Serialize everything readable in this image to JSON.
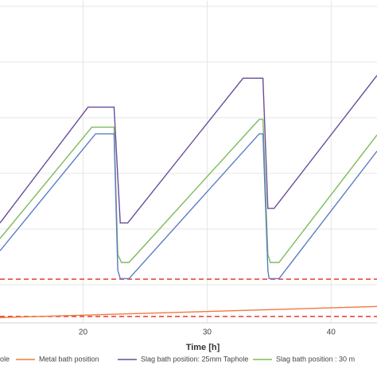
{
  "chart_data": {
    "type": "line",
    "xlabel": "Time [h]",
    "xlim": [
      13.3,
      43.7
    ],
    "xticks": [
      20,
      30,
      40
    ],
    "ylim": [
      -1,
      57
    ],
    "ygrid": [
      6,
      16,
      26,
      36,
      46,
      56
    ],
    "grid": true,
    "reference": {
      "name": "hole",
      "color": "#e8392f",
      "values": [
        7.0,
        0.3
      ]
    },
    "series": [
      {
        "name": "Metal bath position",
        "color": "#f07a3a",
        "x": [
          13.3,
          43.7
        ],
        "values": [
          0.1,
          2.1
        ]
      },
      {
        "name": "Slag bath position: 25mm Taphole",
        "color": "#6a4c9c",
        "x": [
          13.3,
          20.4,
          22.5,
          23.0,
          23.6,
          32.9,
          34.5,
          34.9,
          35.4,
          43.7
        ],
        "values": [
          17.1,
          37.9,
          37.9,
          17.1,
          17.1,
          43.1,
          43.1,
          19.7,
          19.7,
          43.6
        ]
      },
      {
        "name": "Slag bath position : 30 m",
        "color": "#7dbb5a",
        "x": [
          13.3,
          20.7,
          22.5,
          22.8,
          23.1,
          23.7,
          34.2,
          34.5,
          34.9,
          35.1,
          35.8,
          43.7
        ],
        "values": [
          14.3,
          34.3,
          34.3,
          11.4,
          10.0,
          10.0,
          35.7,
          35.7,
          11.4,
          10.0,
          10.0,
          32.9
        ]
      },
      {
        "color": "#5b7cc4",
        "x": [
          13.3,
          21.0,
          22.5,
          22.8,
          23.0,
          23.7,
          34.2,
          34.5,
          34.9,
          35.0,
          35.8,
          43.7
        ],
        "values": [
          12.1,
          33.1,
          33.1,
          8.6,
          7.1,
          7.1,
          33.1,
          33.1,
          8.6,
          7.1,
          7.1,
          30.0
        ]
      }
    ]
  }
}
